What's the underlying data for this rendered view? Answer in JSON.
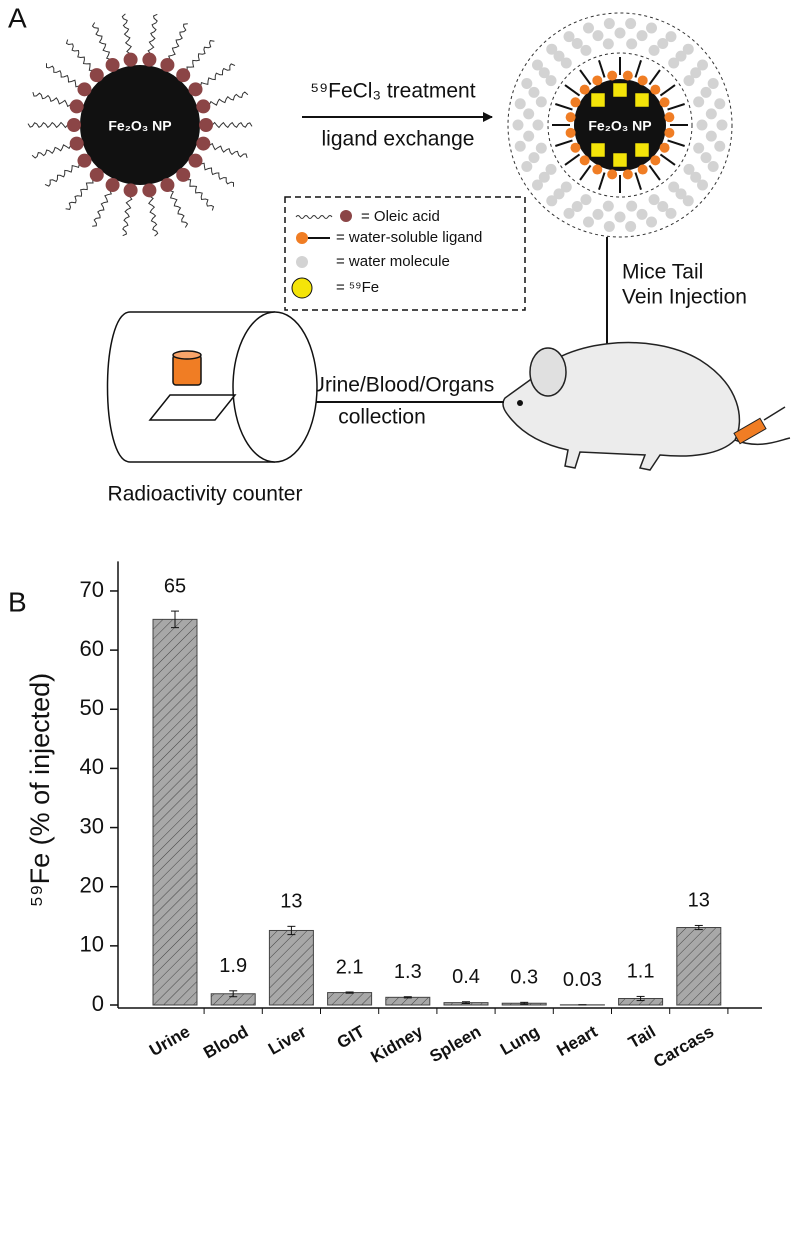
{
  "panel_a": {
    "label": "A",
    "np_label": "Fe₂O₃ NP",
    "step1": [
      "⁵⁹FeCl₃ treatment",
      "ligand exchange"
    ],
    "np2_label": "Fe₂O₃ NP",
    "legend": [
      "= Oleic acid",
      "= water-soluble ligand",
      "= water molecule",
      "= ⁵⁹Fe"
    ],
    "step2": [
      "Mice Tail",
      "Vein Injection"
    ],
    "step3": [
      "Urine/Blood/Organs",
      "collection"
    ],
    "counter": "Radioactivity counter"
  },
  "chart_data": {
    "type": "bar",
    "panel_label": "B",
    "ylabel": "⁵⁹Fe (% of injected)",
    "categories": [
      "Urine",
      "Blood",
      "Liver",
      "GIT",
      "Kidney",
      "Spleen",
      "Lung",
      "Heart",
      "Tail",
      "Carcass"
    ],
    "values": [
      65.2,
      1.9,
      12.6,
      2.1,
      1.3,
      0.4,
      0.3,
      0.03,
      1.1,
      13.1
    ],
    "value_labels": [
      "65",
      "1.9",
      "13",
      "2.1",
      "1.3",
      "0.4",
      "0.3",
      "0.03",
      "1.1",
      "13"
    ],
    "errors": [
      1.4,
      0.5,
      0.7,
      0.1,
      0.1,
      0.15,
      0.15,
      0,
      0.35,
      0.35
    ],
    "color": "#a8a8a8",
    "ylim": [
      0,
      75
    ],
    "yticks": [
      0,
      10,
      20,
      30,
      40,
      50,
      60,
      70
    ]
  }
}
